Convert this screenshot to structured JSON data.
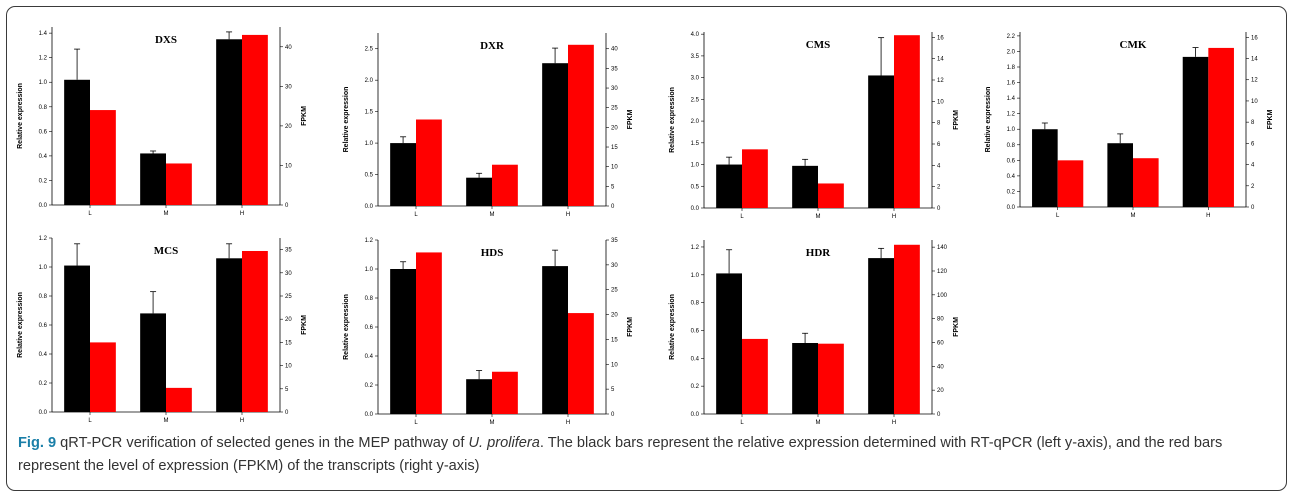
{
  "caption": {
    "fig_label": "Fig. 9",
    "text_before": "qRT-PCR verification of selected genes in the MEP pathway of",
    "species": "U. prolifera",
    "text_after": ". The black bars represent the relative expression determined with RT-qPCR (left y-axis), and the red bars represent the level of expression (FPKM) of the transcripts (right y-axis)"
  },
  "colors": {
    "relative_expression": "#000000",
    "fpkm": "#ff0000",
    "error_bar": "#000000"
  },
  "chart_data": [
    {
      "type": "bar",
      "title": "DXS",
      "categories": [
        "L",
        "M",
        "H"
      ],
      "ylabel": "Relative expression",
      "y2label": "FPKM",
      "ylim": [
        0,
        1.45
      ],
      "yticks": [
        "0.0",
        "0.2",
        "0.4",
        "0.6",
        "0.8",
        "1.0",
        "1.2",
        "1.4"
      ],
      "y2lim": [
        0,
        45
      ],
      "y2ticks": [
        "0",
        "10",
        "20",
        "30",
        "40"
      ],
      "series": [
        {
          "axis": "left",
          "values": [
            1.02,
            0.42,
            1.35
          ],
          "errors": [
            0.25,
            0.02,
            0.06
          ]
        },
        {
          "axis": "right",
          "values": [
            24,
            10.5,
            43
          ]
        }
      ]
    },
    {
      "type": "bar",
      "title": "DXR",
      "categories": [
        "L",
        "M",
        "H"
      ],
      "ylabel": "Relative expression",
      "y2label": "FPKM",
      "ylim": [
        0,
        2.75
      ],
      "yticks": [
        "0.0",
        "0.5",
        "1.0",
        "1.5",
        "2.0",
        "2.5"
      ],
      "y2lim": [
        0,
        44
      ],
      "y2ticks": [
        "0",
        "5",
        "10",
        "15",
        "20",
        "25",
        "30",
        "35",
        "40"
      ],
      "series": [
        {
          "axis": "left",
          "values": [
            1.0,
            0.45,
            2.27
          ],
          "errors": [
            0.1,
            0.07,
            0.24
          ]
        },
        {
          "axis": "right",
          "values": [
            22,
            10.5,
            41
          ]
        }
      ]
    },
    {
      "type": "bar",
      "title": "CMS",
      "categories": [
        "L",
        "M",
        "H"
      ],
      "ylabel": "Relative expression",
      "y2label": "FPKM",
      "ylim": [
        0,
        4.05
      ],
      "yticks": [
        "0.0",
        "0.5",
        "1.0",
        "1.5",
        "2.0",
        "2.5",
        "3.0",
        "3.5",
        "4.0"
      ],
      "y2lim": [
        0,
        16.5
      ],
      "y2ticks": [
        "0",
        "2",
        "4",
        "6",
        "8",
        "10",
        "12",
        "14",
        "16"
      ],
      "series": [
        {
          "axis": "left",
          "values": [
            1.0,
            0.97,
            3.05
          ],
          "errors": [
            0.17,
            0.15,
            0.87
          ]
        },
        {
          "axis": "right",
          "values": [
            5.5,
            2.3,
            16.2
          ]
        }
      ]
    },
    {
      "type": "bar",
      "title": "CMK",
      "categories": [
        "L",
        "M",
        "H"
      ],
      "ylabel": "Relative expression",
      "y2label": "FPKM",
      "ylim": [
        0,
        2.25
      ],
      "yticks": [
        "0.0",
        "0.2",
        "0.4",
        "0.6",
        "0.8",
        "1.0",
        "1.2",
        "1.4",
        "1.6",
        "1.8",
        "2.0",
        "2.2"
      ],
      "y2lim": [
        0,
        16.5
      ],
      "y2ticks": [
        "0",
        "2",
        "4",
        "6",
        "8",
        "10",
        "12",
        "14",
        "16"
      ],
      "series": [
        {
          "axis": "left",
          "values": [
            1.0,
            0.82,
            1.93
          ],
          "errors": [
            0.08,
            0.12,
            0.12
          ]
        },
        {
          "axis": "right",
          "values": [
            4.4,
            4.6,
            15
          ]
        }
      ]
    },
    {
      "type": "bar",
      "title": "MCS",
      "categories": [
        "L",
        "M",
        "H"
      ],
      "ylabel": "Relative expression",
      "y2label": "FPKM",
      "ylim": [
        0,
        1.2
      ],
      "yticks": [
        "0.0",
        "0.2",
        "0.4",
        "0.6",
        "0.8",
        "1.0",
        "1.2"
      ],
      "y2lim": [
        0,
        37.5
      ],
      "y2ticks": [
        "0",
        "5",
        "10",
        "15",
        "20",
        "25",
        "30",
        "35"
      ],
      "series": [
        {
          "axis": "left",
          "values": [
            1.01,
            0.68,
            1.06
          ],
          "errors": [
            0.15,
            0.15,
            0.1
          ]
        },
        {
          "axis": "right",
          "values": [
            15,
            5.2,
            34.7
          ]
        }
      ]
    },
    {
      "type": "bar",
      "title": "HDS",
      "categories": [
        "L",
        "M",
        "H"
      ],
      "ylabel": "Relative expression",
      "y2label": "FPKM",
      "ylim": [
        0,
        1.2
      ],
      "yticks": [
        "0.0",
        "0.2",
        "0.4",
        "0.6",
        "0.8",
        "1.0",
        "1.2"
      ],
      "y2lim": [
        0,
        35
      ],
      "y2ticks": [
        "0",
        "5",
        "10",
        "15",
        "20",
        "25",
        "30",
        "35"
      ],
      "series": [
        {
          "axis": "left",
          "values": [
            1.0,
            0.24,
            1.02
          ],
          "errors": [
            0.05,
            0.06,
            0.11
          ]
        },
        {
          "axis": "right",
          "values": [
            32.5,
            8.5,
            20.3
          ]
        }
      ]
    },
    {
      "type": "bar",
      "title": "HDR",
      "categories": [
        "L",
        "M",
        "H"
      ],
      "ylabel": "Relative expression",
      "y2label": "FPKM",
      "ylim": [
        0,
        1.25
      ],
      "yticks": [
        "0.0",
        "0.2",
        "0.4",
        "0.6",
        "0.8",
        "1.0",
        "1.2"
      ],
      "y2lim": [
        0,
        146
      ],
      "y2ticks": [
        "0",
        "20",
        "40",
        "60",
        "80",
        "100",
        "120",
        "140"
      ],
      "series": [
        {
          "axis": "left",
          "values": [
            1.01,
            0.51,
            1.12
          ],
          "errors": [
            0.17,
            0.07,
            0.07
          ]
        },
        {
          "axis": "right",
          "values": [
            63,
            59,
            142
          ]
        }
      ]
    }
  ]
}
